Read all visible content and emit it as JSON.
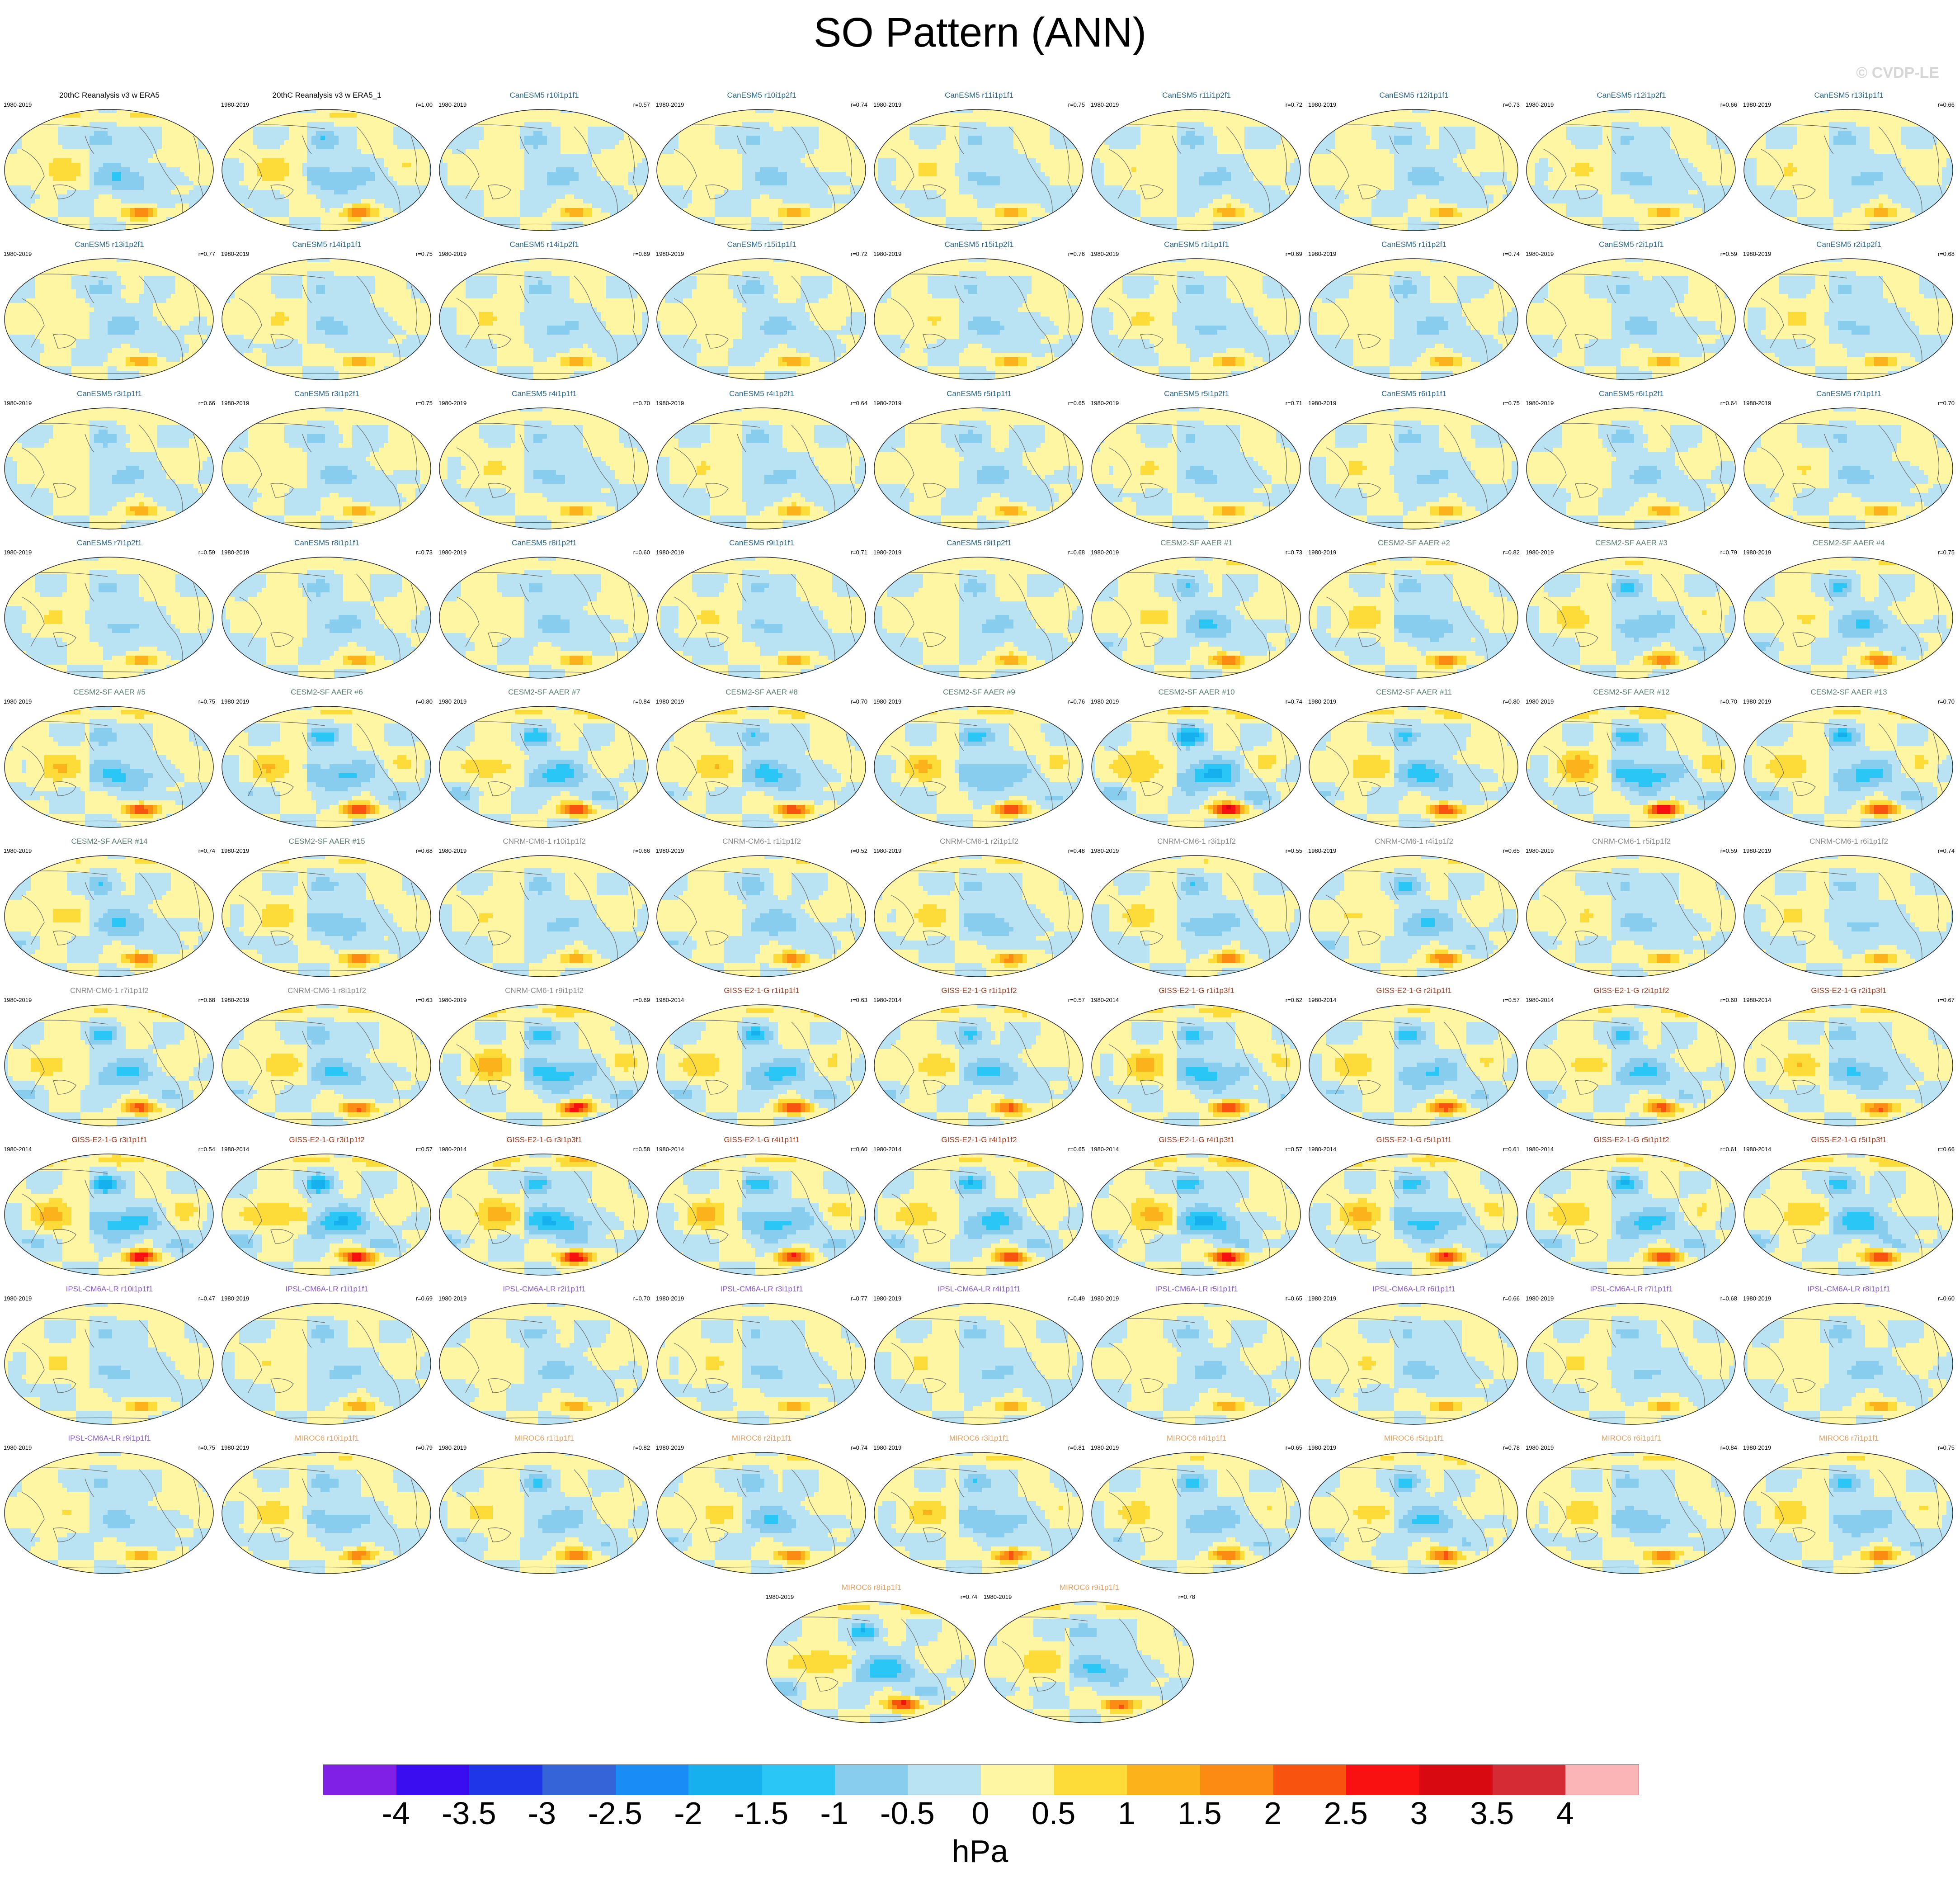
{
  "figure": {
    "title": "SO Pattern (ANN)",
    "watermark": "© CVDP-LE",
    "units": "hPa"
  },
  "colorbar": {
    "colors": [
      "#8020e6",
      "#3a0cf0",
      "#1f35e8",
      "#3563d8",
      "#1a8cf5",
      "#17b0ef",
      "#2ac6f6",
      "#88cdee",
      "#b9e2f3",
      "#fef6a2",
      "#fddc3a",
      "#fcb21a",
      "#fb8b12",
      "#f8540f",
      "#f91111",
      "#d80911",
      "#d42b34",
      "#fbb5b7"
    ],
    "ticks": [
      "-4",
      "-3.5",
      "-3",
      "-2.5",
      "-2",
      "-1.5",
      "-1",
      "-0.5",
      "0",
      "0.5",
      "1",
      "1.5",
      "2",
      "2.5",
      "3",
      "3.5",
      "4"
    ]
  },
  "group_colors": {
    "obs": "#000000",
    "CanESM5": "#23678b",
    "CESM2-SF": "#5a7f73",
    "CNRM-CM6-1": "#8b8b8b",
    "GISS-E2-1-G": "#a23a1a",
    "IPSL-CM6A-LR": "#8a58d0",
    "MIROC6": "#e1a060"
  },
  "panels": [
    {
      "title": "20thC Reanalysis v3 w ERA5",
      "period": "1980-2019",
      "corr": "",
      "group": "obs",
      "strength": 0.9
    },
    {
      "title": "20thC Reanalysis v3 w ERA5_1",
      "period": "1980-2019",
      "corr": "r=1.00",
      "group": "obs",
      "strength": 0.9
    },
    {
      "title": "CanESM5 r10i1p1f1",
      "period": "1980-2019",
      "corr": "r=0.57",
      "group": "CanESM5",
      "strength": 0.6
    },
    {
      "title": "CanESM5 r10i1p2f1",
      "period": "1980-2019",
      "corr": "r=0.74",
      "group": "CanESM5",
      "strength": 0.6
    },
    {
      "title": "CanESM5 r11i1p1f1",
      "period": "1980-2019",
      "corr": "r=0.75",
      "group": "CanESM5",
      "strength": 0.6
    },
    {
      "title": "CanESM5 r11i1p2f1",
      "period": "1980-2019",
      "corr": "r=0.72",
      "group": "CanESM5",
      "strength": 0.6
    },
    {
      "title": "CanESM5 r12i1p1f1",
      "period": "1980-2019",
      "corr": "r=0.73",
      "group": "CanESM5",
      "strength": 0.6
    },
    {
      "title": "CanESM5 r12i1p2f1",
      "period": "1980-2019",
      "corr": "r=0.66",
      "group": "CanESM5",
      "strength": 0.6
    },
    {
      "title": "CanESM5 r13i1p1f1",
      "period": "1980-2019",
      "corr": "r=0.66",
      "group": "CanESM5",
      "strength": 0.6
    },
    {
      "title": "CanESM5 r13i1p2f1",
      "period": "1980-2019",
      "corr": "r=0.77",
      "group": "CanESM5",
      "strength": 0.6
    },
    {
      "title": "CanESM5 r14i1p1f1",
      "period": "1980-2019",
      "corr": "r=0.75",
      "group": "CanESM5",
      "strength": 0.6
    },
    {
      "title": "CanESM5 r14i1p2f1",
      "period": "1980-2019",
      "corr": "r=0.69",
      "group": "CanESM5",
      "strength": 0.6
    },
    {
      "title": "CanESM5 r15i1p1f1",
      "period": "1980-2019",
      "corr": "r=0.72",
      "group": "CanESM5",
      "strength": 0.6
    },
    {
      "title": "CanESM5 r15i1p2f1",
      "period": "1980-2019",
      "corr": "r=0.76",
      "group": "CanESM5",
      "strength": 0.6
    },
    {
      "title": "CanESM5 r1i1p1f1",
      "period": "1980-2019",
      "corr": "r=0.69",
      "group": "CanESM5",
      "strength": 0.6
    },
    {
      "title": "CanESM5 r1i1p2f1",
      "period": "1980-2019",
      "corr": "r=0.74",
      "group": "CanESM5",
      "strength": 0.6
    },
    {
      "title": "CanESM5 r2i1p1f1",
      "period": "1980-2019",
      "corr": "r=0.59",
      "group": "CanESM5",
      "strength": 0.6
    },
    {
      "title": "CanESM5 r2i1p2f1",
      "period": "1980-2019",
      "corr": "r=0.68",
      "group": "CanESM5",
      "strength": 0.6
    },
    {
      "title": "CanESM5 r3i1p1f1",
      "period": "1980-2019",
      "corr": "r=0.66",
      "group": "CanESM5",
      "strength": 0.6
    },
    {
      "title": "CanESM5 r3i1p2f1",
      "period": "1980-2019",
      "corr": "r=0.75",
      "group": "CanESM5",
      "strength": 0.6
    },
    {
      "title": "CanESM5 r4i1p1f1",
      "period": "1980-2019",
      "corr": "r=0.70",
      "group": "CanESM5",
      "strength": 0.6
    },
    {
      "title": "CanESM5 r4i1p2f1",
      "period": "1980-2019",
      "corr": "r=0.64",
      "group": "CanESM5",
      "strength": 0.6
    },
    {
      "title": "CanESM5 r5i1p1f1",
      "period": "1980-2019",
      "corr": "r=0.65",
      "group": "CanESM5",
      "strength": 0.6
    },
    {
      "title": "CanESM5 r5i1p2f1",
      "period": "1980-2019",
      "corr": "r=0.71",
      "group": "CanESM5",
      "strength": 0.6
    },
    {
      "title": "CanESM5 r6i1p1f1",
      "period": "1980-2019",
      "corr": "r=0.75",
      "group": "CanESM5",
      "strength": 0.6
    },
    {
      "title": "CanESM5 r6i1p2f1",
      "period": "1980-2019",
      "corr": "r=0.64",
      "group": "CanESM5",
      "strength": 0.6
    },
    {
      "title": "CanESM5 r7i1p1f1",
      "period": "1980-2019",
      "corr": "r=0.70",
      "group": "CanESM5",
      "strength": 0.6
    },
    {
      "title": "CanESM5 r7i1p2f1",
      "period": "1980-2019",
      "corr": "r=0.59",
      "group": "CanESM5",
      "strength": 0.6
    },
    {
      "title": "CanESM5 r8i1p1f1",
      "period": "1980-2019",
      "corr": "r=0.73",
      "group": "CanESM5",
      "strength": 0.6
    },
    {
      "title": "CanESM5 r8i1p2f1",
      "period": "1980-2019",
      "corr": "r=0.60",
      "group": "CanESM5",
      "strength": 0.6
    },
    {
      "title": "CanESM5 r9i1p1f1",
      "period": "1980-2019",
      "corr": "r=0.71",
      "group": "CanESM5",
      "strength": 0.6
    },
    {
      "title": "CanESM5 r9i1p2f1",
      "period": "1980-2019",
      "corr": "r=0.68",
      "group": "CanESM5",
      "strength": 0.6
    },
    {
      "title": "CESM2-SF AAER #1",
      "period": "1980-2019",
      "corr": "r=0.73",
      "group": "CESM2-SF",
      "strength": 0.9
    },
    {
      "title": "CESM2-SF AAER #2",
      "period": "1980-2019",
      "corr": "r=0.82",
      "group": "CESM2-SF",
      "strength": 0.9
    },
    {
      "title": "CESM2-SF AAER #3",
      "period": "1980-2019",
      "corr": "r=0.79",
      "group": "CESM2-SF",
      "strength": 0.9
    },
    {
      "title": "CESM2-SF AAER #4",
      "period": "1980-2019",
      "corr": "r=0.75",
      "group": "CESM2-SF",
      "strength": 0.9
    },
    {
      "title": "CESM2-SF AAER #5",
      "period": "1980-2019",
      "corr": "r=0.75",
      "group": "CESM2-SF",
      "strength": 1.1
    },
    {
      "title": "CESM2-SF AAER #6",
      "period": "1980-2019",
      "corr": "r=0.80",
      "group": "CESM2-SF",
      "strength": 1.1
    },
    {
      "title": "CESM2-SF AAER #7",
      "period": "1980-2019",
      "corr": "r=0.84",
      "group": "CESM2-SF",
      "strength": 1.1
    },
    {
      "title": "CESM2-SF AAER #8",
      "period": "1980-2019",
      "corr": "r=0.70",
      "group": "CESM2-SF",
      "strength": 1.1
    },
    {
      "title": "CESM2-SF AAER #9",
      "period": "1980-2019",
      "corr": "r=0.76",
      "group": "CESM2-SF",
      "strength": 1.1
    },
    {
      "title": "CESM2-SF AAER #10",
      "period": "1980-2019",
      "corr": "r=0.74",
      "group": "CESM2-SF",
      "strength": 1.4
    },
    {
      "title": "CESM2-SF AAER #11",
      "period": "1980-2019",
      "corr": "r=0.80",
      "group": "CESM2-SF",
      "strength": 1.1
    },
    {
      "title": "CESM2-SF AAER #12",
      "period": "1980-2019",
      "corr": "r=0.70",
      "group": "CESM2-SF",
      "strength": 1.4
    },
    {
      "title": "CESM2-SF AAER #13",
      "period": "1980-2019",
      "corr": "r=0.70",
      "group": "CESM2-SF",
      "strength": 1.1
    },
    {
      "title": "CESM2-SF AAER #14",
      "period": "1980-2019",
      "corr": "r=0.74",
      "group": "CESM2-SF",
      "strength": 0.9
    },
    {
      "title": "CESM2-SF AAER #15",
      "period": "1980-2019",
      "corr": "r=0.68",
      "group": "CESM2-SF",
      "strength": 0.9
    },
    {
      "title": "CNRM-CM6-1 r10i1p1f2",
      "period": "1980-2019",
      "corr": "r=0.66",
      "group": "CNRM-CM6-1",
      "strength": 0.6
    },
    {
      "title": "CNRM-CM6-1 r1i1p1f2",
      "period": "1980-2019",
      "corr": "r=0.52",
      "group": "CNRM-CM6-1",
      "strength": 0.8
    },
    {
      "title": "CNRM-CM6-1 r2i1p1f2",
      "period": "1980-2019",
      "corr": "r=0.48",
      "group": "CNRM-CM6-1",
      "strength": 0.8
    },
    {
      "title": "CNRM-CM6-1 r3i1p1f2",
      "period": "1980-2019",
      "corr": "r=0.55",
      "group": "CNRM-CM6-1",
      "strength": 0.8
    },
    {
      "title": "CNRM-CM6-1 r4i1p1f2",
      "period": "1980-2019",
      "corr": "r=0.65",
      "group": "CNRM-CM6-1",
      "strength": 0.9
    },
    {
      "title": "CNRM-CM6-1 r5i1p1f2",
      "period": "1980-2019",
      "corr": "r=0.59",
      "group": "CNRM-CM6-1",
      "strength": 0.6
    },
    {
      "title": "CNRM-CM6-1 r6i1p1f2",
      "period": "1980-2019",
      "corr": "r=0.74",
      "group": "CNRM-CM6-1",
      "strength": 0.6
    },
    {
      "title": "CNRM-CM6-1 r7i1p1f2",
      "period": "1980-2019",
      "corr": "r=0.68",
      "group": "CNRM-CM6-1",
      "strength": 1.0
    },
    {
      "title": "CNRM-CM6-1 r8i1p1f2",
      "period": "1980-2019",
      "corr": "r=0.63",
      "group": "CNRM-CM6-1",
      "strength": 1.0
    },
    {
      "title": "CNRM-CM6-1 r9i1p1f2",
      "period": "1980-2019",
      "corr": "r=0.69",
      "group": "CNRM-CM6-1",
      "strength": 1.3
    },
    {
      "title": "GISS-E2-1-G r1i1p1f1",
      "period": "1980-2014",
      "corr": "r=0.63",
      "group": "GISS-E2-1-G",
      "strength": 1.1
    },
    {
      "title": "GISS-E2-1-G r1i1p1f2",
      "period": "1980-2014",
      "corr": "r=0.57",
      "group": "GISS-E2-1-G",
      "strength": 1.0
    },
    {
      "title": "GISS-E2-1-G r1i1p3f1",
      "period": "1980-2014",
      "corr": "r=0.62",
      "group": "GISS-E2-1-G",
      "strength": 1.2
    },
    {
      "title": "GISS-E2-1-G r2i1p1f1",
      "period": "1980-2014",
      "corr": "r=0.57",
      "group": "GISS-E2-1-G",
      "strength": 1.0
    },
    {
      "title": "GISS-E2-1-G r2i1p1f2",
      "period": "1980-2014",
      "corr": "r=0.60",
      "group": "GISS-E2-1-G",
      "strength": 1.0
    },
    {
      "title": "GISS-E2-1-G r2i1p3f1",
      "period": "1980-2014",
      "corr": "r=0.67",
      "group": "GISS-E2-1-G",
      "strength": 1.0
    },
    {
      "title": "GISS-E2-1-G r3i1p1f1",
      "period": "1980-2014",
      "corr": "r=0.54",
      "group": "GISS-E2-1-G",
      "strength": 1.3
    },
    {
      "title": "GISS-E2-1-G r3i1p1f2",
      "period": "1980-2014",
      "corr": "r=0.57",
      "group": "GISS-E2-1-G",
      "strength": 1.3
    },
    {
      "title": "GISS-E2-1-G r3i1p3f1",
      "period": "1980-2014",
      "corr": "r=0.58",
      "group": "GISS-E2-1-G",
      "strength": 1.4
    },
    {
      "title": "GISS-E2-1-G r4i1p1f1",
      "period": "1980-2014",
      "corr": "r=0.60",
      "group": "GISS-E2-1-G",
      "strength": 1.2
    },
    {
      "title": "GISS-E2-1-G r4i1p1f2",
      "period": "1980-2014",
      "corr": "r=0.65",
      "group": "GISS-E2-1-G",
      "strength": 1.1
    },
    {
      "title": "GISS-E2-1-G r4i1p3f1",
      "period": "1980-2014",
      "corr": "r=0.57",
      "group": "GISS-E2-1-G",
      "strength": 1.4
    },
    {
      "title": "GISS-E2-1-G r5i1p1f1",
      "period": "1980-2014",
      "corr": "r=0.61",
      "group": "GISS-E2-1-G",
      "strength": 1.2
    },
    {
      "title": "GISS-E2-1-G r5i1p1f2",
      "period": "1980-2014",
      "corr": "r=0.61",
      "group": "GISS-E2-1-G",
      "strength": 1.1
    },
    {
      "title": "GISS-E2-1-G r5i1p3f1",
      "period": "1980-2014",
      "corr": "r=0.66",
      "group": "GISS-E2-1-G",
      "strength": 1.2
    },
    {
      "title": "IPSL-CM6A-LR r10i1p1f1",
      "period": "1980-2019",
      "corr": "r=0.47",
      "group": "IPSL-CM6A-LR",
      "strength": 0.6
    },
    {
      "title": "IPSL-CM6A-LR r1i1p1f1",
      "period": "1980-2019",
      "corr": "r=0.69",
      "group": "IPSL-CM6A-LR",
      "strength": 0.6
    },
    {
      "title": "IPSL-CM6A-LR r2i1p1f1",
      "period": "1980-2019",
      "corr": "r=0.70",
      "group": "IPSL-CM6A-LR",
      "strength": 0.6
    },
    {
      "title": "IPSL-CM6A-LR r3i1p1f1",
      "period": "1980-2019",
      "corr": "r=0.77",
      "group": "IPSL-CM6A-LR",
      "strength": 0.6
    },
    {
      "title": "IPSL-CM6A-LR r4i1p1f1",
      "period": "1980-2019",
      "corr": "r=0.49",
      "group": "IPSL-CM6A-LR",
      "strength": 0.6
    },
    {
      "title": "IPSL-CM6A-LR r5i1p1f1",
      "period": "1980-2019",
      "corr": "r=0.65",
      "group": "IPSL-CM6A-LR",
      "strength": 0.6
    },
    {
      "title": "IPSL-CM6A-LR r6i1p1f1",
      "period": "1980-2019",
      "corr": "r=0.66",
      "group": "IPSL-CM6A-LR",
      "strength": 0.6
    },
    {
      "title": "IPSL-CM6A-LR r7i1p1f1",
      "period": "1980-2019",
      "corr": "r=0.68",
      "group": "IPSL-CM6A-LR",
      "strength": 0.6
    },
    {
      "title": "IPSL-CM6A-LR r8i1p1f1",
      "period": "1980-2019",
      "corr": "r=0.60",
      "group": "IPSL-CM6A-LR",
      "strength": 0.6
    },
    {
      "title": "IPSL-CM6A-LR r9i1p1f1",
      "period": "1980-2019",
      "corr": "r=0.75",
      "group": "IPSL-CM6A-LR",
      "strength": 0.6
    },
    {
      "title": "MIROC6 r10i1p1f1",
      "period": "1980-2019",
      "corr": "r=0.79",
      "group": "MIROC6",
      "strength": 0.8
    },
    {
      "title": "MIROC6 r1i1p1f1",
      "period": "1980-2019",
      "corr": "r=0.82",
      "group": "MIROC6",
      "strength": 0.8
    },
    {
      "title": "MIROC6 r2i1p1f1",
      "period": "1980-2019",
      "corr": "r=0.74",
      "group": "MIROC6",
      "strength": 0.9
    },
    {
      "title": "MIROC6 r3i1p1f1",
      "period": "1980-2019",
      "corr": "r=0.81",
      "group": "MIROC6",
      "strength": 1.0
    },
    {
      "title": "MIROC6 r4i1p1f1",
      "period": "1980-2019",
      "corr": "r=0.65",
      "group": "MIROC6",
      "strength": 0.9
    },
    {
      "title": "MIROC6 r5i1p1f1",
      "period": "1980-2019",
      "corr": "r=0.78",
      "group": "MIROC6",
      "strength": 1.0
    },
    {
      "title": "MIROC6 r6i1p1f1",
      "period": "1980-2019",
      "corr": "r=0.84",
      "group": "MIROC6",
      "strength": 0.9
    },
    {
      "title": "MIROC6 r7i1p1f1",
      "period": "1980-2019",
      "corr": "r=0.75",
      "group": "MIROC6",
      "strength": 0.9
    },
    {
      "title": "MIROC6 r8i1p1f1",
      "period": "1980-2019",
      "corr": "r=0.74",
      "group": "MIROC6",
      "strength": 1.2
    },
    {
      "title": "MIROC6 r9i1p1f1",
      "period": "1980-2019",
      "corr": "r=0.78",
      "group": "MIROC6",
      "strength": 1.0
    }
  ]
}
